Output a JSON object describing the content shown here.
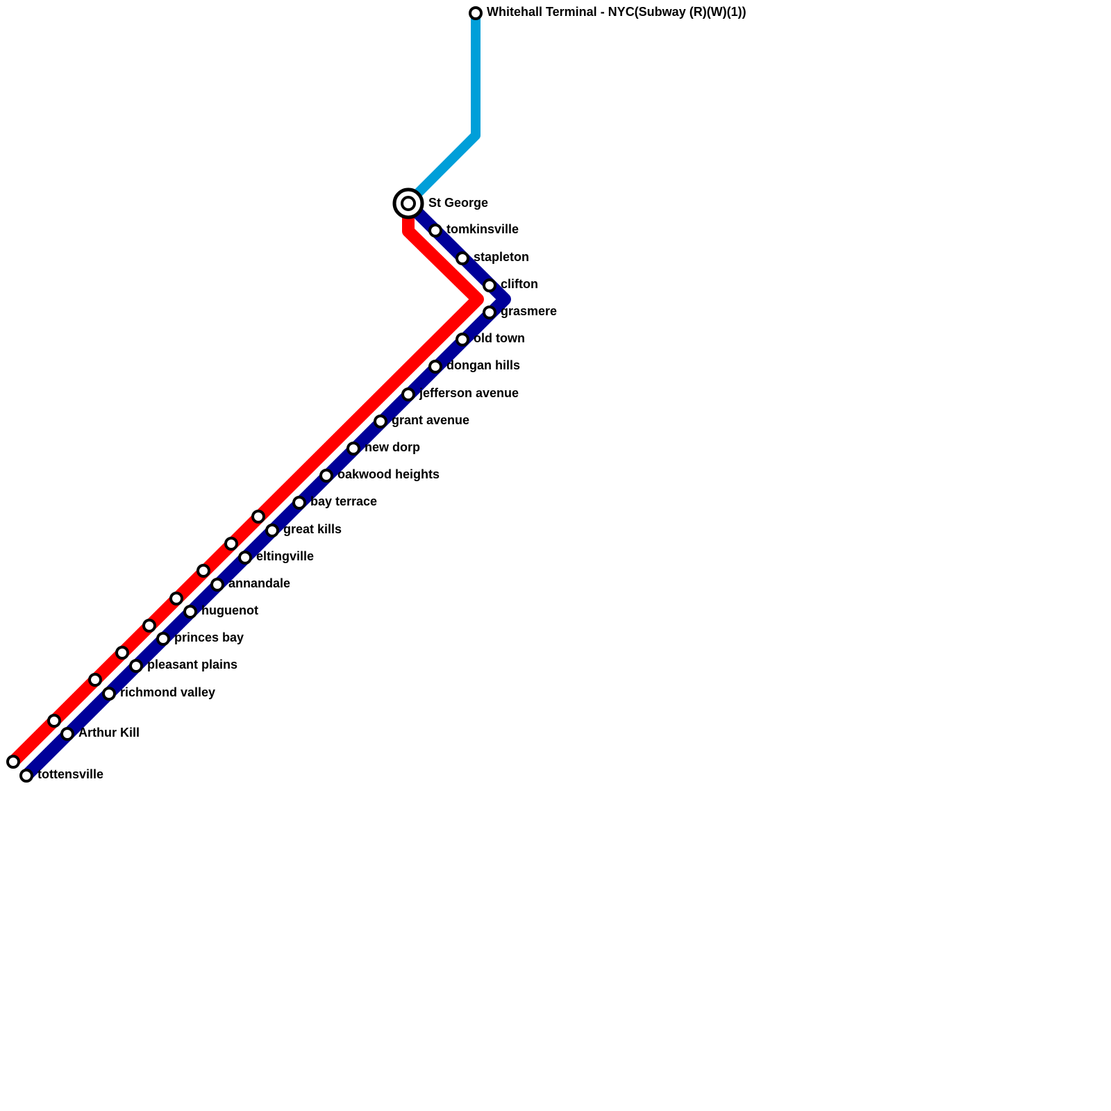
{
  "stations": [
    {
      "label": "Whitehall Terminal - NYC(Subway (R)(W)(1))"
    },
    {
      "label": "St George"
    },
    {
      "label": "tomkinsville"
    },
    {
      "label": "stapleton"
    },
    {
      "label": "clifton"
    },
    {
      "label": "grasmere"
    },
    {
      "label": "old town"
    },
    {
      "label": "dongan hills"
    },
    {
      "label": "jefferson avenue"
    },
    {
      "label": "grant avenue"
    },
    {
      "label": "new dorp"
    },
    {
      "label": "oakwood heights"
    },
    {
      "label": "bay terrace"
    },
    {
      "label": "great kills"
    },
    {
      "label": "eltingville"
    },
    {
      "label": "annandale"
    },
    {
      "label": "huguenot"
    },
    {
      "label": "princes bay"
    },
    {
      "label": "pleasant plains"
    },
    {
      "label": "richmond valley"
    },
    {
      "label": "Arthur Kill"
    },
    {
      "label": "tottensville"
    }
  ]
}
